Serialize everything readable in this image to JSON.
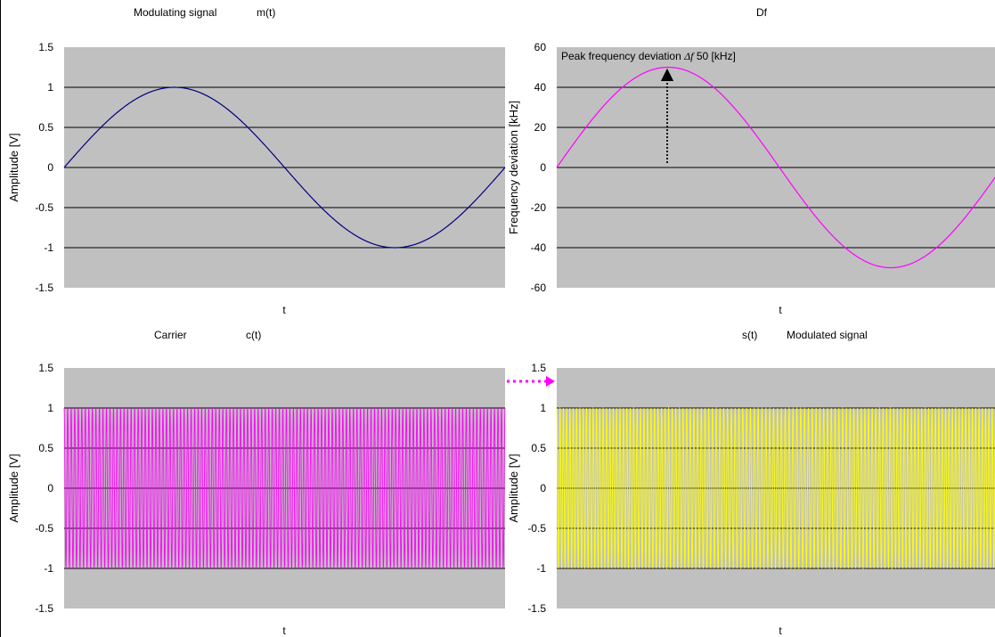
{
  "colors": {
    "plot_background": "#c0c0c0",
    "gridline": "#000000",
    "modulating_trace": "#000080",
    "deviation_trace": "#ff00ff",
    "carrier_trace": "#ff00ff",
    "modulated_trace": "#ffff00",
    "connector_arrow": "#ff00ff"
  },
  "connector": {
    "style": "dotted-arrow",
    "from": "carrier-plot",
    "to": "modulated-plot"
  },
  "chart_data": [
    {
      "id": "modulating",
      "type": "line",
      "title_left": "Modulating signal",
      "title_right": "m(t)",
      "xlabel": "t",
      "ylabel": "Amplitude [V]",
      "ylim": [
        -1.5,
        1.5
      ],
      "yticks": [
        "1.5",
        "1",
        "0.5",
        "0",
        "-0.5",
        "-1",
        "-1.5"
      ],
      "grid": true,
      "signal": "sine",
      "cycles": 1,
      "x": [
        0,
        0.125,
        0.25,
        0.375,
        0.5,
        0.625,
        0.75,
        0.875,
        1
      ],
      "y": [
        0,
        0.71,
        1,
        0.71,
        0,
        -0.71,
        -1,
        -0.71,
        0
      ]
    },
    {
      "id": "deviation",
      "type": "line",
      "title": "Df",
      "xlabel": "t",
      "ylabel": "Frequency deviation [kHz]",
      "ylim": [
        -60,
        60
      ],
      "yticks": [
        "60",
        "40",
        "20",
        "0",
        "-20",
        "-40",
        "-60"
      ],
      "grid": true,
      "signal": "sine",
      "cycles": 1,
      "x": [
        0,
        0.125,
        0.25,
        0.375,
        0.5,
        0.625,
        0.75,
        0.875,
        1
      ],
      "y": [
        0,
        35.4,
        50,
        35.4,
        0,
        -35.4,
        -50,
        -35.4,
        0
      ],
      "annotation": {
        "text_prefix": "Peak frequency deviation",
        "symbol": "Δf",
        "text_suffix": "50 [kHz]",
        "value": 50
      }
    },
    {
      "id": "carrier",
      "type": "line",
      "title_left": "Carrier",
      "title_right": "c(t)",
      "xlabel": "t",
      "ylabel": "Amplitude [V]",
      "ylim": [
        -1.5,
        1.5
      ],
      "yticks": [
        "1.5",
        "1",
        "0.5",
        "0",
        "-0.5",
        "-1",
        "-1.5"
      ],
      "grid": true,
      "signal": "cosine",
      "amplitude": 1,
      "cycles": 125
    },
    {
      "id": "modulated",
      "type": "line",
      "title_left": "s(t)",
      "title_right": "Modulated signal",
      "xlabel": "t",
      "ylabel": "Amplitude [V]",
      "ylim": [
        -1.5,
        1.5
      ],
      "yticks": [
        "1.5",
        "1",
        "0.5",
        "0",
        "-0.5",
        "-1",
        "-1.5"
      ],
      "grid": true,
      "signal": "fm",
      "amplitude": 1,
      "cycles": 125,
      "deviation_cycles": 10
    }
  ]
}
